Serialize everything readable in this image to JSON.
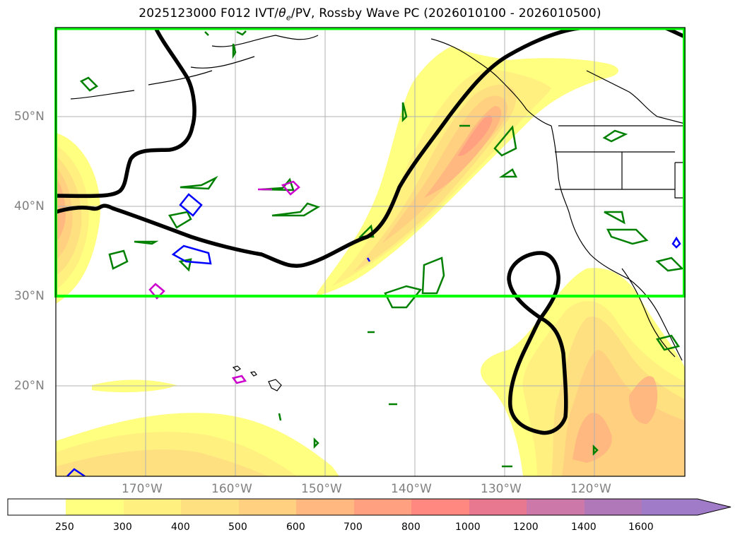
{
  "title": {
    "prefix": "2025123000 F012 IVT/",
    "theta_symbol": "θ",
    "theta_subscript": "e",
    "suffix": "/PV, Rossby Wave PC (2026010100 - 2026010500)"
  },
  "map": {
    "lat_labels": [
      "50°N",
      "40°N",
      "30°N",
      "20°N"
    ],
    "lon_labels": [
      "170°W",
      "160°W",
      "150°W",
      "140°W",
      "130°W",
      "120°W"
    ],
    "region_box_color": "#00ff00",
    "rossby_wave_line_color": "#000000",
    "theta_e_contour_color": "#008000",
    "pv_contour_colors": [
      "#0000ff",
      "#cc00cc"
    ]
  },
  "colorbar": {
    "levels": [
      "250",
      "300",
      "400",
      "500",
      "600",
      "700",
      "800",
      "1000",
      "1200",
      "1400",
      "1600"
    ],
    "colors": [
      "#ffffff",
      "#ffff80",
      "#fff080",
      "#ffe080",
      "#ffd080",
      "#ffb880",
      "#ffa080",
      "#ff8880",
      "#e87890",
      "#cc78a8",
      "#b078b8",
      "#a07cc8"
    ],
    "extend": "max"
  }
}
